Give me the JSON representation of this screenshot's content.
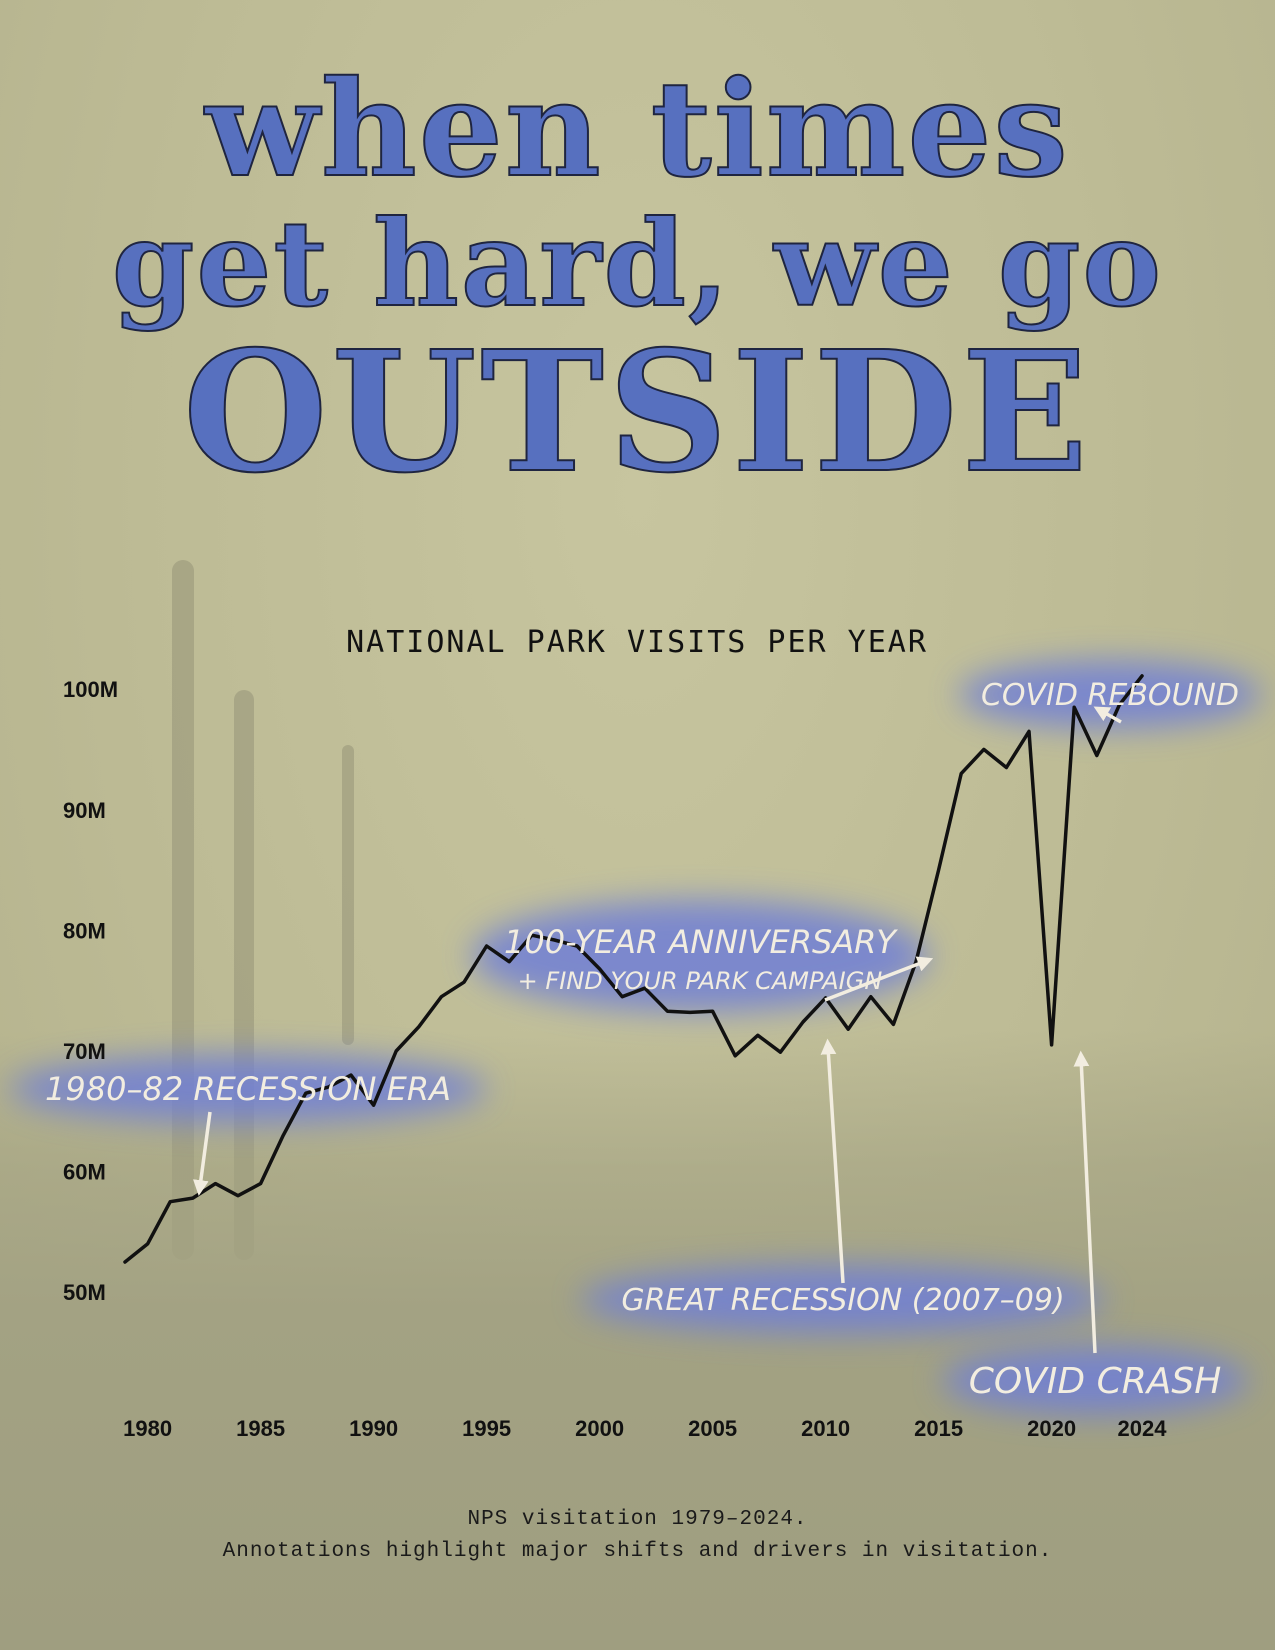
{
  "headline": {
    "line1": "when times",
    "line2": "get hard, we go",
    "line3": "OUTSIDE"
  },
  "footer": {
    "line1": "NPS visitation 1979–2024.",
    "line2": "Annotations highlight major shifts and drivers in visitation."
  },
  "colors": {
    "headline": "#5770bf",
    "line": "#111111",
    "annotation": "#f2ede0",
    "glow": "#6f7fd6"
  },
  "chart_data": {
    "type": "line",
    "title": "NATIONAL PARK VISITS PER YEAR",
    "xlabel": "",
    "ylabel": "",
    "xlim": [
      1978,
      2025
    ],
    "ylim": [
      50,
      105
    ],
    "x_ticks": [
      1980,
      1985,
      1990,
      1995,
      2000,
      2005,
      2010,
      2015,
      2020,
      2024
    ],
    "y_ticks": [
      50,
      60,
      70,
      80,
      90,
      100
    ],
    "y_tick_labels": [
      "50M",
      "60M",
      "70M",
      "80M",
      "90M",
      "100M"
    ],
    "grid": false,
    "legend": "none",
    "x": [
      1979,
      1980,
      1981,
      1982,
      1983,
      1984,
      1985,
      1986,
      1987,
      1988,
      1989,
      1990,
      1991,
      1992,
      1993,
      1994,
      1995,
      1996,
      1997,
      1998,
      1999,
      2000,
      2001,
      2002,
      2003,
      2004,
      2005,
      2006,
      2007,
      2008,
      2009,
      2010,
      2011,
      2012,
      2013,
      2014,
      2015,
      2016,
      2017,
      2018,
      2019,
      2020,
      2021,
      2022,
      2023,
      2024
    ],
    "series": [
      {
        "values": [
          52.5,
          54.0,
          57.5,
          57.8,
          59.0,
          58.0,
          59.0,
          63.0,
          66.5,
          67.0,
          68.0,
          65.5,
          70.0,
          72.0,
          74.5,
          75.7,
          78.7,
          77.4,
          79.6,
          79.2,
          78.7,
          76.8,
          74.5,
          75.2,
          73.3,
          73.2,
          73.3,
          69.6,
          71.3,
          69.9,
          72.4,
          74.4,
          71.8,
          74.5,
          72.2,
          77.4,
          85.0,
          93.0,
          95.0,
          93.5,
          96.5,
          70.5,
          98.5,
          94.5,
          98.7,
          101.1
        ]
      }
    ],
    "annotations": [
      {
        "id": "recession-80s",
        "text": "1980–82 RECESSION ERA",
        "x": 1982.3,
        "y": 58.5
      },
      {
        "id": "anniversary",
        "text": "100-YEAR ANNIVERSARY",
        "subtext": "+ FIND YOUR PARK CAMPAIGN",
        "x": 2014.5,
        "y": 77.5
      },
      {
        "id": "great-recession",
        "text": "GREAT RECESSION (2007–09)",
        "x": 2010.1,
        "y": 70.5
      },
      {
        "id": "covid-crash",
        "text": "COVID CRASH",
        "x": 2021.3,
        "y": 69.5
      },
      {
        "id": "covid-rebound",
        "text": "COVID REBOUND",
        "x": 2022.1,
        "y": 98.3
      }
    ]
  }
}
